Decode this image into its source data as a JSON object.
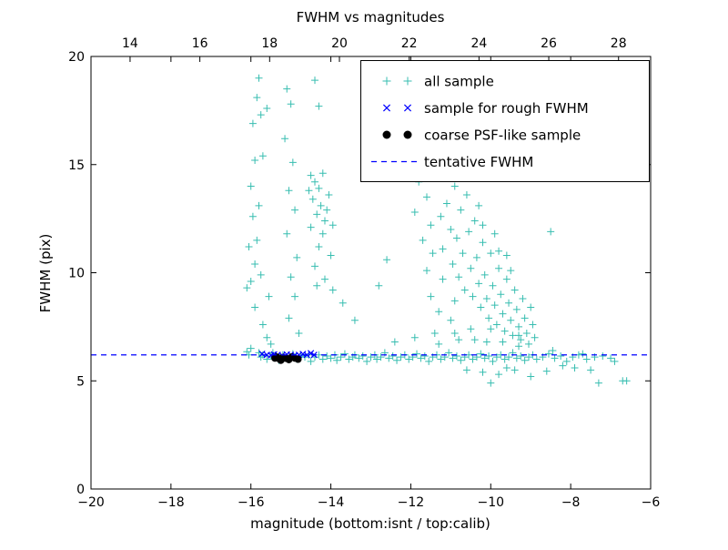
{
  "chart_data": {
    "type": "scatter",
    "title": "FWHM vs magnitudes",
    "xlabel": "magnitude (bottom:isnt / top:calib)",
    "ylabel": "FWHM (pix)",
    "xlim": [
      -20,
      -6
    ],
    "ylim": [
      0,
      20
    ],
    "top_xlim": [
      12.88,
      28.92
    ],
    "x_tick_values": [
      -20,
      -18,
      -16,
      -14,
      -12,
      -10,
      -8,
      -6
    ],
    "x_tick_labels": [
      "−20",
      "−18",
      "−16",
      "−14",
      "−12",
      "−10",
      "−8",
      "−6"
    ],
    "y_tick_values": [
      0,
      5,
      10,
      15,
      20
    ],
    "y_tick_labels": [
      "0",
      "5",
      "10",
      "15",
      "20"
    ],
    "top_tick_values": [
      14,
      16,
      18,
      20,
      22,
      24,
      26,
      28
    ],
    "top_tick_labels": [
      "14",
      "16",
      "18",
      "20",
      "22",
      "24",
      "26",
      "28"
    ],
    "grid": false,
    "legend": {
      "position": "upper right"
    },
    "colors": {
      "frame": "#000000",
      "background": "#ffffff"
    },
    "series": [
      {
        "name": "all sample",
        "marker": "plus",
        "color": "#37bdb0",
        "points": [
          [
            -16.1,
            6.35
          ],
          [
            -16.05,
            6.2
          ],
          [
            -15.8,
            6.3
          ],
          [
            -15.75,
            6.1
          ],
          [
            -15.7,
            6.2
          ],
          [
            -15.6,
            6.0
          ],
          [
            -15.5,
            6.15
          ],
          [
            -15.45,
            6.3
          ],
          [
            -15.35,
            6.1
          ],
          [
            -15.3,
            5.95
          ],
          [
            -15.2,
            6.2
          ],
          [
            -15.1,
            6.05
          ],
          [
            -15.0,
            6.1
          ],
          [
            -14.95,
            6.25
          ],
          [
            -14.85,
            6.0
          ],
          [
            -14.75,
            6.15
          ],
          [
            -14.65,
            6.1
          ],
          [
            -14.55,
            6.2
          ],
          [
            -14.5,
            5.9
          ],
          [
            -14.4,
            6.1
          ],
          [
            -14.3,
            6.2
          ],
          [
            -14.2,
            6.0
          ],
          [
            -14.1,
            6.15
          ],
          [
            -14.0,
            6.05
          ],
          [
            -13.9,
            6.2
          ],
          [
            -13.85,
            5.95
          ],
          [
            -13.75,
            6.1
          ],
          [
            -13.65,
            6.25
          ],
          [
            -13.55,
            6.0
          ],
          [
            -13.45,
            6.1
          ],
          [
            -13.4,
            6.2
          ],
          [
            -13.3,
            6.05
          ],
          [
            -13.2,
            6.15
          ],
          [
            -13.1,
            5.9
          ],
          [
            -13.0,
            6.1
          ],
          [
            -12.9,
            6.2
          ],
          [
            -12.85,
            6.0
          ],
          [
            -12.75,
            6.1
          ],
          [
            -12.65,
            6.3
          ],
          [
            -12.55,
            6.05
          ],
          [
            -12.45,
            6.15
          ],
          [
            -12.35,
            5.95
          ],
          [
            -12.25,
            6.1
          ],
          [
            -12.15,
            6.2
          ],
          [
            -12.05,
            6.0
          ],
          [
            -11.95,
            6.1
          ],
          [
            -11.85,
            6.25
          ],
          [
            -11.75,
            6.05
          ],
          [
            -11.65,
            6.15
          ],
          [
            -11.55,
            5.9
          ],
          [
            -11.45,
            6.1
          ],
          [
            -11.35,
            6.2
          ],
          [
            -11.25,
            6.0
          ],
          [
            -11.15,
            6.1
          ],
          [
            -11.05,
            6.3
          ],
          [
            -10.95,
            6.05
          ],
          [
            -10.85,
            6.15
          ],
          [
            -10.75,
            5.95
          ],
          [
            -10.65,
            6.1
          ],
          [
            -10.55,
            6.2
          ],
          [
            -10.45,
            6.0
          ],
          [
            -10.35,
            6.1
          ],
          [
            -10.25,
            6.25
          ],
          [
            -10.15,
            6.05
          ],
          [
            -10.05,
            6.15
          ],
          [
            -9.95,
            5.9
          ],
          [
            -9.85,
            6.1
          ],
          [
            -9.75,
            6.2
          ],
          [
            -9.65,
            6.0
          ],
          [
            -9.55,
            6.1
          ],
          [
            -9.45,
            6.3
          ],
          [
            -9.35,
            6.05
          ],
          [
            -9.25,
            6.15
          ],
          [
            -9.15,
            5.95
          ],
          [
            -9.05,
            6.1
          ],
          [
            -8.95,
            6.2
          ],
          [
            -8.85,
            6.0
          ],
          [
            -8.7,
            6.1
          ],
          [
            -8.55,
            6.25
          ],
          [
            -8.4,
            6.05
          ],
          [
            -8.25,
            6.15
          ],
          [
            -8.1,
            5.9
          ],
          [
            -7.95,
            6.1
          ],
          [
            -7.8,
            6.2
          ],
          [
            -7.6,
            6.0
          ],
          [
            -7.4,
            6.1
          ],
          [
            -7.2,
            6.15
          ],
          [
            -7.0,
            6.05
          ],
          [
            -10.6,
            5.5
          ],
          [
            -10.2,
            5.4
          ],
          [
            -9.8,
            5.3
          ],
          [
            -9.4,
            5.5
          ],
          [
            -9.0,
            5.2
          ],
          [
            -8.6,
            5.45
          ],
          [
            -10.0,
            4.9
          ],
          [
            -9.6,
            5.6
          ],
          [
            -7.5,
            5.5
          ],
          [
            -6.6,
            5.0
          ],
          [
            -12.4,
            6.8
          ],
          [
            -11.9,
            7.0
          ],
          [
            -11.3,
            6.7
          ],
          [
            -10.9,
            7.2
          ],
          [
            -10.4,
            6.9
          ],
          [
            -10.0,
            7.4
          ],
          [
            -9.7,
            6.8
          ],
          [
            -9.3,
            7.1
          ],
          [
            -16.1,
            9.3
          ],
          [
            -16.0,
            9.6
          ],
          [
            -15.9,
            10.4
          ],
          [
            -16.05,
            11.2
          ],
          [
            -15.85,
            11.5
          ],
          [
            -15.95,
            12.6
          ],
          [
            -15.8,
            13.1
          ],
          [
            -16.0,
            14.0
          ],
          [
            -15.9,
            15.2
          ],
          [
            -15.7,
            15.4
          ],
          [
            -15.95,
            16.9
          ],
          [
            -15.75,
            17.3
          ],
          [
            -15.85,
            18.1
          ],
          [
            -15.6,
            17.6
          ],
          [
            -15.8,
            19.0
          ],
          [
            -15.55,
            8.9
          ],
          [
            -15.9,
            8.4
          ],
          [
            -15.7,
            7.6
          ],
          [
            -15.6,
            7.0
          ],
          [
            -15.5,
            6.7
          ],
          [
            -16.0,
            6.5
          ],
          [
            -15.75,
            9.9
          ],
          [
            -15.1,
            18.5
          ],
          [
            -15.0,
            17.8
          ],
          [
            -15.15,
            16.2
          ],
          [
            -14.95,
            15.1
          ],
          [
            -15.05,
            13.8
          ],
          [
            -14.9,
            12.9
          ],
          [
            -15.1,
            11.8
          ],
          [
            -14.85,
            10.7
          ],
          [
            -15.0,
            9.8
          ],
          [
            -14.9,
            8.9
          ],
          [
            -15.05,
            7.9
          ],
          [
            -14.8,
            7.2
          ],
          [
            -14.5,
            14.5
          ],
          [
            -14.4,
            14.2
          ],
          [
            -14.3,
            13.9
          ],
          [
            -14.45,
            13.4
          ],
          [
            -14.25,
            13.1
          ],
          [
            -14.35,
            12.7
          ],
          [
            -14.15,
            12.4
          ],
          [
            -14.5,
            12.1
          ],
          [
            -14.2,
            11.8
          ],
          [
            -14.05,
            13.6
          ],
          [
            -14.1,
            12.9
          ],
          [
            -13.95,
            12.2
          ],
          [
            -14.3,
            11.2
          ],
          [
            -14.0,
            10.8
          ],
          [
            -14.4,
            10.3
          ],
          [
            -14.15,
            9.7
          ],
          [
            -13.95,
            9.2
          ],
          [
            -14.55,
            13.8
          ],
          [
            -14.2,
            14.6
          ],
          [
            -14.35,
            9.4
          ],
          [
            -14.4,
            18.9
          ],
          [
            -14.3,
            17.7
          ],
          [
            -13.7,
            8.6
          ],
          [
            -13.4,
            7.8
          ],
          [
            -12.8,
            9.4
          ],
          [
            -12.6,
            10.6
          ],
          [
            -11.9,
            12.8
          ],
          [
            -11.8,
            14.2
          ],
          [
            -11.7,
            11.5
          ],
          [
            -11.6,
            13.5
          ],
          [
            -11.5,
            12.2
          ],
          [
            -11.45,
            10.9
          ],
          [
            -11.3,
            14.8
          ],
          [
            -11.25,
            12.6
          ],
          [
            -11.2,
            11.1
          ],
          [
            -11.1,
            13.2
          ],
          [
            -11.0,
            12.0
          ],
          [
            -10.95,
            10.4
          ],
          [
            -10.9,
            14.0
          ],
          [
            -10.85,
            11.6
          ],
          [
            -10.8,
            9.8
          ],
          [
            -10.75,
            12.9
          ],
          [
            -10.7,
            10.9
          ],
          [
            -10.65,
            9.2
          ],
          [
            -10.6,
            13.6
          ],
          [
            -10.55,
            11.9
          ],
          [
            -10.5,
            10.2
          ],
          [
            -10.45,
            8.9
          ],
          [
            -10.4,
            12.4
          ],
          [
            -10.35,
            10.7
          ],
          [
            -10.3,
            9.5
          ],
          [
            -10.25,
            8.4
          ],
          [
            -10.2,
            11.4
          ],
          [
            -10.15,
            9.9
          ],
          [
            -10.1,
            8.8
          ],
          [
            -10.05,
            7.9
          ],
          [
            -10.0,
            10.9
          ],
          [
            -9.95,
            9.4
          ],
          [
            -9.9,
            8.5
          ],
          [
            -9.85,
            7.6
          ],
          [
            -9.8,
            10.2
          ],
          [
            -9.75,
            9.0
          ],
          [
            -9.7,
            8.1
          ],
          [
            -9.65,
            7.3
          ],
          [
            -9.6,
            9.7
          ],
          [
            -9.55,
            8.6
          ],
          [
            -9.5,
            7.8
          ],
          [
            -9.45,
            7.1
          ],
          [
            -9.4,
            9.2
          ],
          [
            -9.35,
            8.3
          ],
          [
            -9.3,
            7.5
          ],
          [
            -9.25,
            6.9
          ],
          [
            -9.2,
            8.8
          ],
          [
            -9.15,
            7.9
          ],
          [
            -9.1,
            7.2
          ],
          [
            -9.05,
            6.7
          ],
          [
            -9.0,
            8.4
          ],
          [
            -8.95,
            7.6
          ],
          [
            -9.6,
            10.8
          ],
          [
            -9.9,
            11.8
          ],
          [
            -10.3,
            13.1
          ],
          [
            -10.7,
            15.3
          ],
          [
            -10.6,
            14.6
          ],
          [
            -10.2,
            12.2
          ],
          [
            -9.8,
            11.0
          ],
          [
            -9.5,
            10.1
          ],
          [
            -10.9,
            8.7
          ],
          [
            -11.2,
            9.7
          ],
          [
            -11.5,
            8.9
          ],
          [
            -11.0,
            7.8
          ],
          [
            -10.5,
            7.4
          ],
          [
            -11.6,
            10.1
          ],
          [
            -11.3,
            8.2
          ],
          [
            -8.9,
            7.0
          ],
          [
            -9.3,
            6.6
          ],
          [
            -10.1,
            6.8
          ],
          [
            -10.8,
            6.9
          ],
          [
            -11.4,
            7.2
          ],
          [
            -12.3,
            14.4
          ],
          [
            -8.5,
            11.9
          ],
          [
            -8.45,
            6.4
          ],
          [
            -8.2,
            5.7
          ],
          [
            -7.9,
            5.6
          ],
          [
            -7.7,
            6.25
          ],
          [
            -7.3,
            4.9
          ],
          [
            -6.9,
            5.9
          ],
          [
            -6.7,
            5.0
          ]
        ]
      },
      {
        "name": "sample for rough FWHM",
        "marker": "x",
        "color": "#0000ff",
        "points": [
          [
            -15.72,
            6.25
          ],
          [
            -15.6,
            6.2
          ],
          [
            -15.5,
            6.18
          ],
          [
            -15.42,
            6.22
          ],
          [
            -15.33,
            6.2
          ],
          [
            -15.22,
            6.18
          ],
          [
            -15.1,
            6.22
          ],
          [
            -15.0,
            6.2
          ],
          [
            -14.9,
            6.18
          ],
          [
            -14.8,
            6.2
          ],
          [
            -14.7,
            6.24
          ],
          [
            -14.6,
            6.2
          ],
          [
            -14.5,
            6.28
          ],
          [
            -14.42,
            6.2
          ]
        ]
      },
      {
        "name": "coarse PSF-like sample",
        "marker": "dot",
        "color": "#000000",
        "points": [
          [
            -15.4,
            6.05
          ],
          [
            -15.35,
            6.1
          ],
          [
            -15.28,
            6.0
          ],
          [
            -15.2,
            6.08
          ],
          [
            -15.12,
            6.04
          ],
          [
            -15.05,
            5.98
          ],
          [
            -14.98,
            6.1
          ],
          [
            -14.9,
            6.05
          ],
          [
            -14.82,
            6.0
          ],
          [
            -15.25,
            5.95
          ]
        ]
      },
      {
        "name": "tentative FWHM",
        "marker": "dashed-line",
        "color": "#0000ff",
        "y": 6.2
      }
    ]
  }
}
